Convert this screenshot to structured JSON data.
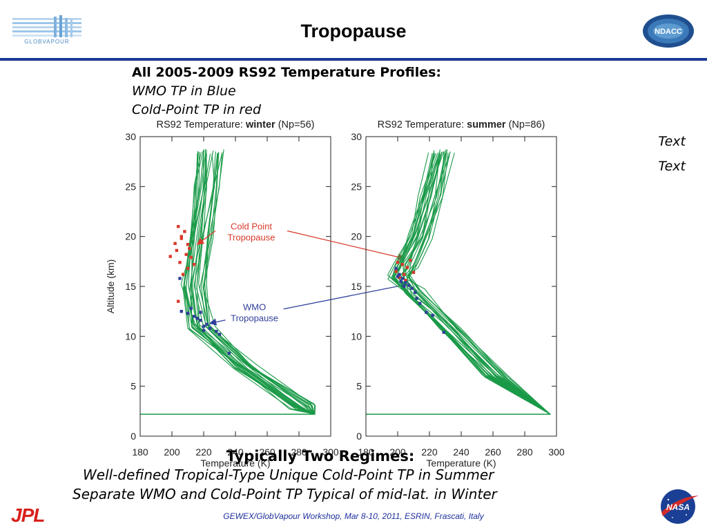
{
  "header": {
    "title": "Tropopause",
    "left_logo": {
      "text": "GLOBVAPOUR",
      "icon": "globvapour-logo-icon"
    },
    "right_logo": {
      "text": "NDACC",
      "icon": "ndacc-logo-icon"
    }
  },
  "intro": {
    "heading": "All 2005-2009 RS92 Temperature Profiles:",
    "line1": "WMO TP in Blue",
    "line2": "Cold-Point TP in red"
  },
  "side_notes": [
    "Text",
    "Text"
  ],
  "chart_data": [
    {
      "type": "line",
      "title_prefix": "RS92 Temperature: ",
      "title_bold": "winter",
      "title_suffix": " (Np=56)",
      "xlabel": "Temperature (K)",
      "ylabel": "Altitude (km)",
      "xlim": [
        180,
        300
      ],
      "ylim": [
        0,
        30
      ],
      "xticks": [
        180,
        200,
        220,
        240,
        260,
        280,
        300
      ],
      "yticks": [
        0,
        5,
        10,
        15,
        20,
        25,
        30
      ],
      "grid": false,
      "series": [
        {
          "color": "#1a9a48",
          "values": [
            [
              224,
              28.5
            ],
            [
              222,
              25
            ],
            [
              218,
              20
            ],
            [
              214,
              15
            ],
            [
              218,
              11
            ],
            [
              246,
              7
            ],
            [
              282,
              3
            ],
            [
              290,
              2.2
            ],
            [
              180,
              2.2
            ]
          ]
        }
      ],
      "cold_point_tp_points": [
        [
          204,
          21
        ],
        [
          208,
          20.5
        ],
        [
          206,
          19.8
        ],
        [
          210,
          19.2
        ],
        [
          203,
          18.6
        ],
        [
          209,
          18.2
        ],
        [
          212,
          17.9
        ],
        [
          205,
          17.4
        ],
        [
          199,
          18
        ],
        [
          210,
          16.8
        ],
        [
          214,
          17.2
        ],
        [
          207,
          16.2
        ],
        [
          206,
          20
        ],
        [
          211,
          18.8
        ],
        [
          202,
          19.3
        ],
        [
          204,
          13.5
        ]
      ],
      "wmo_tp_points": [
        [
          206,
          12.5
        ],
        [
          210,
          12.3
        ],
        [
          214,
          12
        ],
        [
          218,
          11.6
        ],
        [
          222,
          11.2
        ],
        [
          216,
          11.8
        ],
        [
          220,
          11
        ],
        [
          224,
          10.8
        ],
        [
          226,
          11.4
        ],
        [
          212,
          12.8
        ],
        [
          218,
          12.4
        ],
        [
          228,
          10.5
        ],
        [
          230,
          10.2
        ],
        [
          236,
          8.3
        ],
        [
          205,
          15.8
        ],
        [
          220,
          10.6
        ]
      ],
      "annotations": [
        {
          "text": [
            "Cold Point",
            "Tropopause"
          ],
          "color": "#d93a2b"
        },
        {
          "text": [
            "WMO",
            "Tropopause"
          ],
          "color": "#2f3f9a"
        }
      ]
    },
    {
      "type": "line",
      "title_prefix": "RS92 Temperature: ",
      "title_bold": "summer",
      "title_suffix": " (Np=86)",
      "xlabel": "Temperature (K)",
      "ylabel": "",
      "xlim": [
        180,
        300
      ],
      "ylim": [
        0,
        30
      ],
      "xticks": [
        180,
        200,
        220,
        240,
        260,
        280,
        300
      ],
      "yticks": [
        0,
        5,
        10,
        15,
        20,
        25,
        30
      ],
      "grid": false,
      "series": [
        {
          "color": "#1a9a48",
          "values": [
            [
              228,
              28.5
            ],
            [
              222,
              24
            ],
            [
              214,
              20
            ],
            [
              206,
              17
            ],
            [
              202,
              16
            ],
            [
              210,
              14.5
            ],
            [
              232,
              11
            ],
            [
              262,
              6
            ],
            [
              296,
              2.2
            ],
            [
              180,
              2.2
            ]
          ]
        }
      ],
      "cold_point_tp_points": [
        [
          200,
          17.4
        ],
        [
          203,
          17.2
        ],
        [
          206,
          16.9
        ],
        [
          199,
          16.5
        ],
        [
          204,
          16.2
        ],
        [
          208,
          17.6
        ],
        [
          201,
          15.9
        ],
        [
          205,
          15.6
        ],
        [
          210,
          16.4
        ]
      ],
      "wmo_tp_points": [
        [
          199,
          16.8
        ],
        [
          201,
          16.2
        ],
        [
          203,
          15.8
        ],
        [
          205,
          15.4
        ],
        [
          207,
          15.1
        ],
        [
          209,
          14.8
        ],
        [
          204,
          15
        ],
        [
          202,
          15.5
        ],
        [
          211,
          14.4
        ],
        [
          214,
          13.3
        ],
        [
          218,
          12.4
        ],
        [
          222,
          12.1
        ],
        [
          212,
          13.8
        ],
        [
          229,
          10.4
        ],
        [
          200,
          16
        ]
      ]
    }
  ],
  "summary": {
    "title": "Typically Two Regimes:",
    "line1": "Well-defined Tropical-Type Unique Cold-Point TP in Summer",
    "line2": "Separate WMO and Cold-Point TP Typical of mid-lat. in Winter"
  },
  "footer": {
    "text": "GEWEX/GlobVapour Workshop, Mar 8-10, 2011, ESRIN, Frascati, Italy",
    "left_logo": {
      "text": "JPL",
      "icon": "jpl-logo-icon"
    },
    "right_logo": {
      "text": "NASA",
      "icon": "nasa-logo-icon"
    }
  },
  "colors": {
    "rule": "#1c3a99",
    "profiles": "#1a9a48",
    "cold_point": "#d93a2b",
    "wmo": "#2f3f9a",
    "footer_text": "#1c2f9c"
  }
}
